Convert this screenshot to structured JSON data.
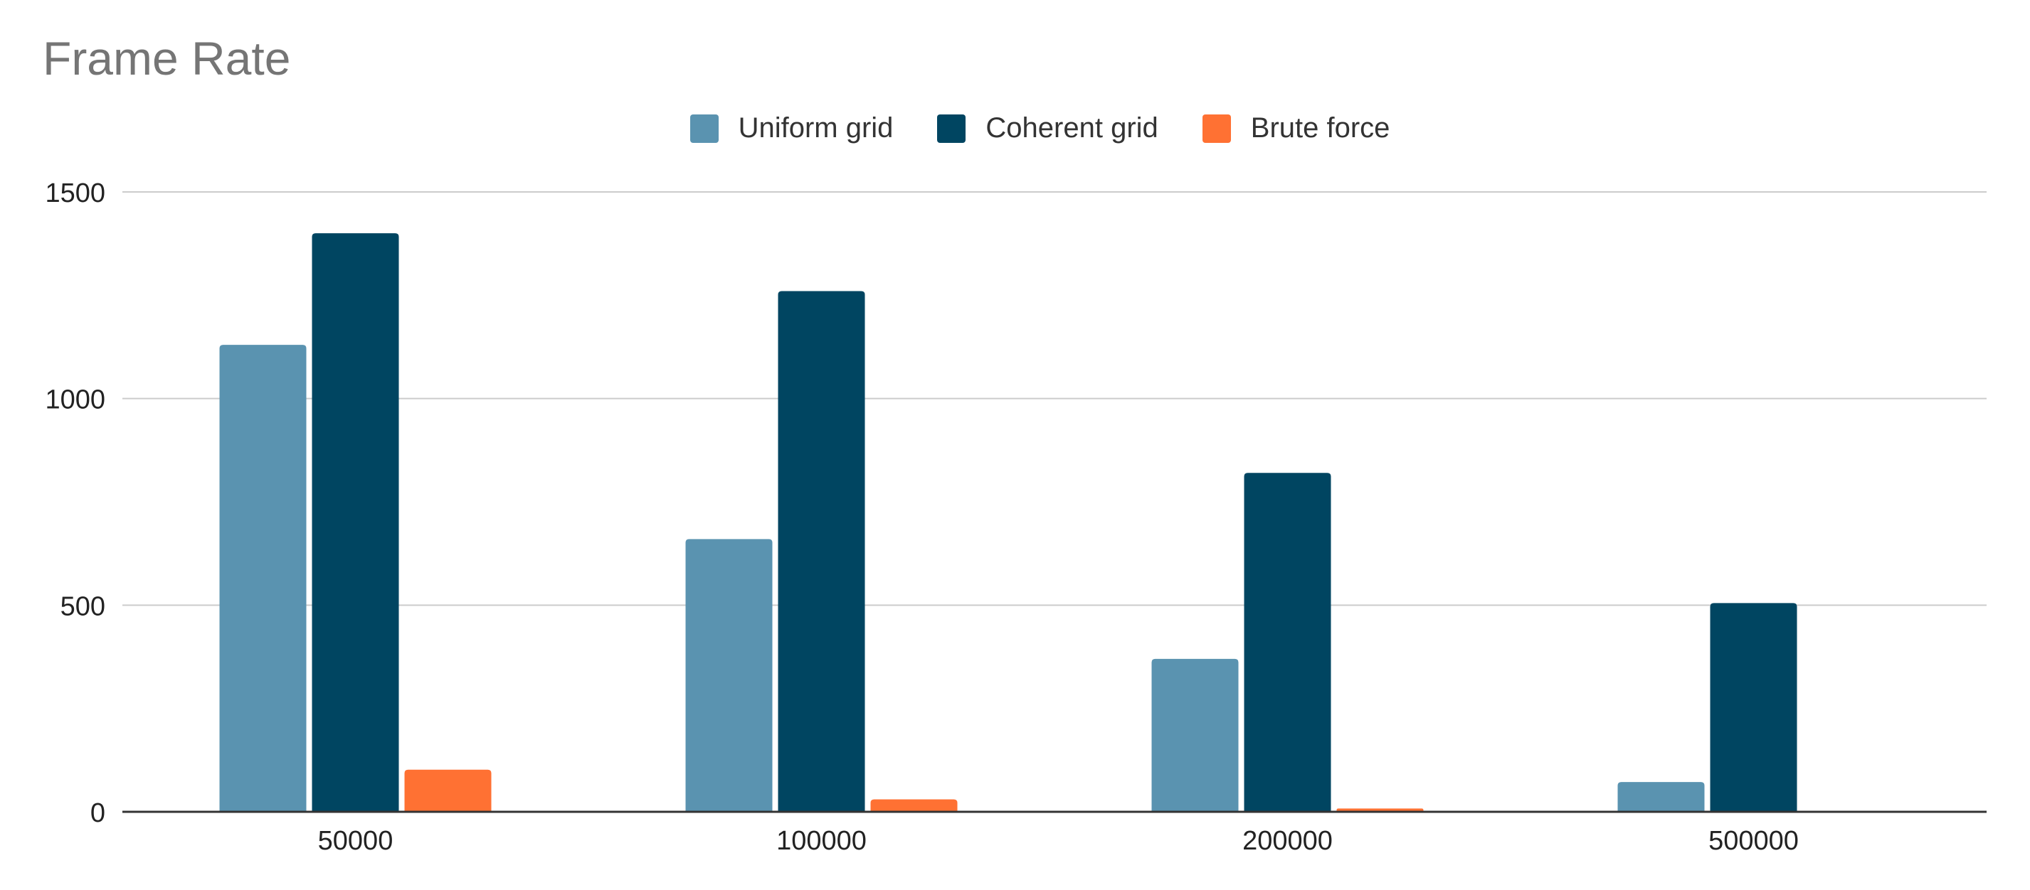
{
  "chart_data": {
    "type": "bar",
    "title": "Frame Rate",
    "xlabel": "",
    "ylabel": "",
    "categories": [
      "50000",
      "100000",
      "200000",
      "500000"
    ],
    "series": [
      {
        "name": "Uniform grid",
        "color": "#5a93b0",
        "values": [
          1130,
          660,
          370,
          72
        ]
      },
      {
        "name": "Coherent grid",
        "color": "#004561",
        "values": [
          1400,
          1260,
          820,
          505
        ]
      },
      {
        "name": "Brute force",
        "color": "#ff7133",
        "values": [
          102,
          30,
          8,
          0
        ]
      }
    ],
    "ylim": [
      0,
      1500
    ],
    "yticks": [
      "0",
      "500",
      "1000",
      "1500"
    ],
    "ytick_values": [
      0,
      500,
      1000,
      1500
    ],
    "grid": true,
    "legend_position": "top-center"
  }
}
